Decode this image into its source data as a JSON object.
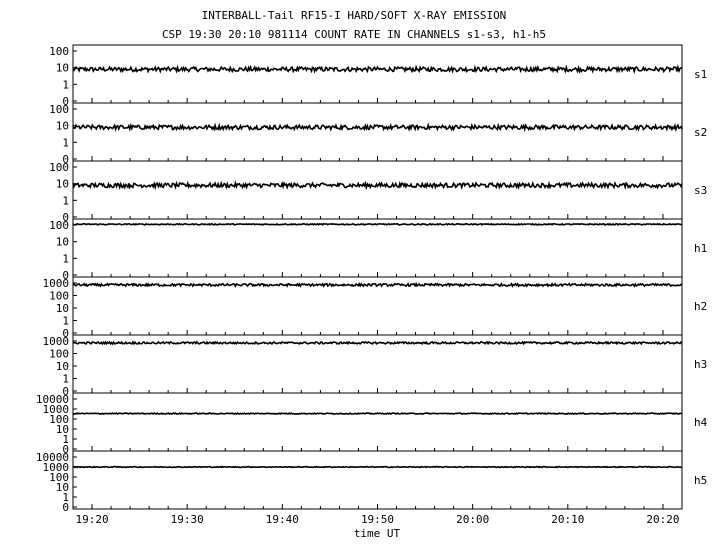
{
  "chart_data": {
    "type": "line",
    "title": "INTERBALL-Tail RF15-I HARD/SOFT X-RAY EMISSION",
    "subtitle": "CSP 19:30 20:10 981114  COUNT RATE IN CHANNELS s1-s3, h1-h5",
    "xlabel": "time UT",
    "x_ticks": [
      "19:20",
      "19:30",
      "19:40",
      "19:50",
      "20:00",
      "20:10",
      "20:20"
    ],
    "x_range": [
      "19:18",
      "20:22"
    ],
    "y_scale": "log",
    "grid": false,
    "panels": [
      {
        "name": "s1",
        "y_ticks": [
          "100",
          "10",
          "1",
          "0"
        ],
        "level": 8,
        "spread": 1.35
      },
      {
        "name": "s2",
        "y_ticks": [
          "100",
          "10",
          "1",
          "0"
        ],
        "level": 8,
        "spread": 1.35
      },
      {
        "name": "s3",
        "y_ticks": [
          "100",
          "10",
          "1",
          "0"
        ],
        "level": 8,
        "spread": 1.35
      },
      {
        "name": "h1",
        "y_ticks": [
          "100",
          "10",
          "1",
          "0"
        ],
        "level": 110,
        "spread": 1.08
      },
      {
        "name": "h2",
        "y_ticks": [
          "1000",
          "100",
          "10",
          "1",
          "0"
        ],
        "level": 700,
        "spread": 1.25
      },
      {
        "name": "h3",
        "y_ticks": [
          "1000",
          "100",
          "10",
          "1",
          "0"
        ],
        "level": 700,
        "spread": 1.2
      },
      {
        "name": "h4",
        "y_ticks": [
          "10000",
          "1000",
          "100",
          "10",
          "1",
          "0"
        ],
        "level": 350,
        "spread": 1.12
      },
      {
        "name": "h5",
        "y_ticks": [
          "10000",
          "1000",
          "100",
          "10",
          "1",
          "0"
        ],
        "level": 1000,
        "spread": 1.1
      }
    ]
  }
}
